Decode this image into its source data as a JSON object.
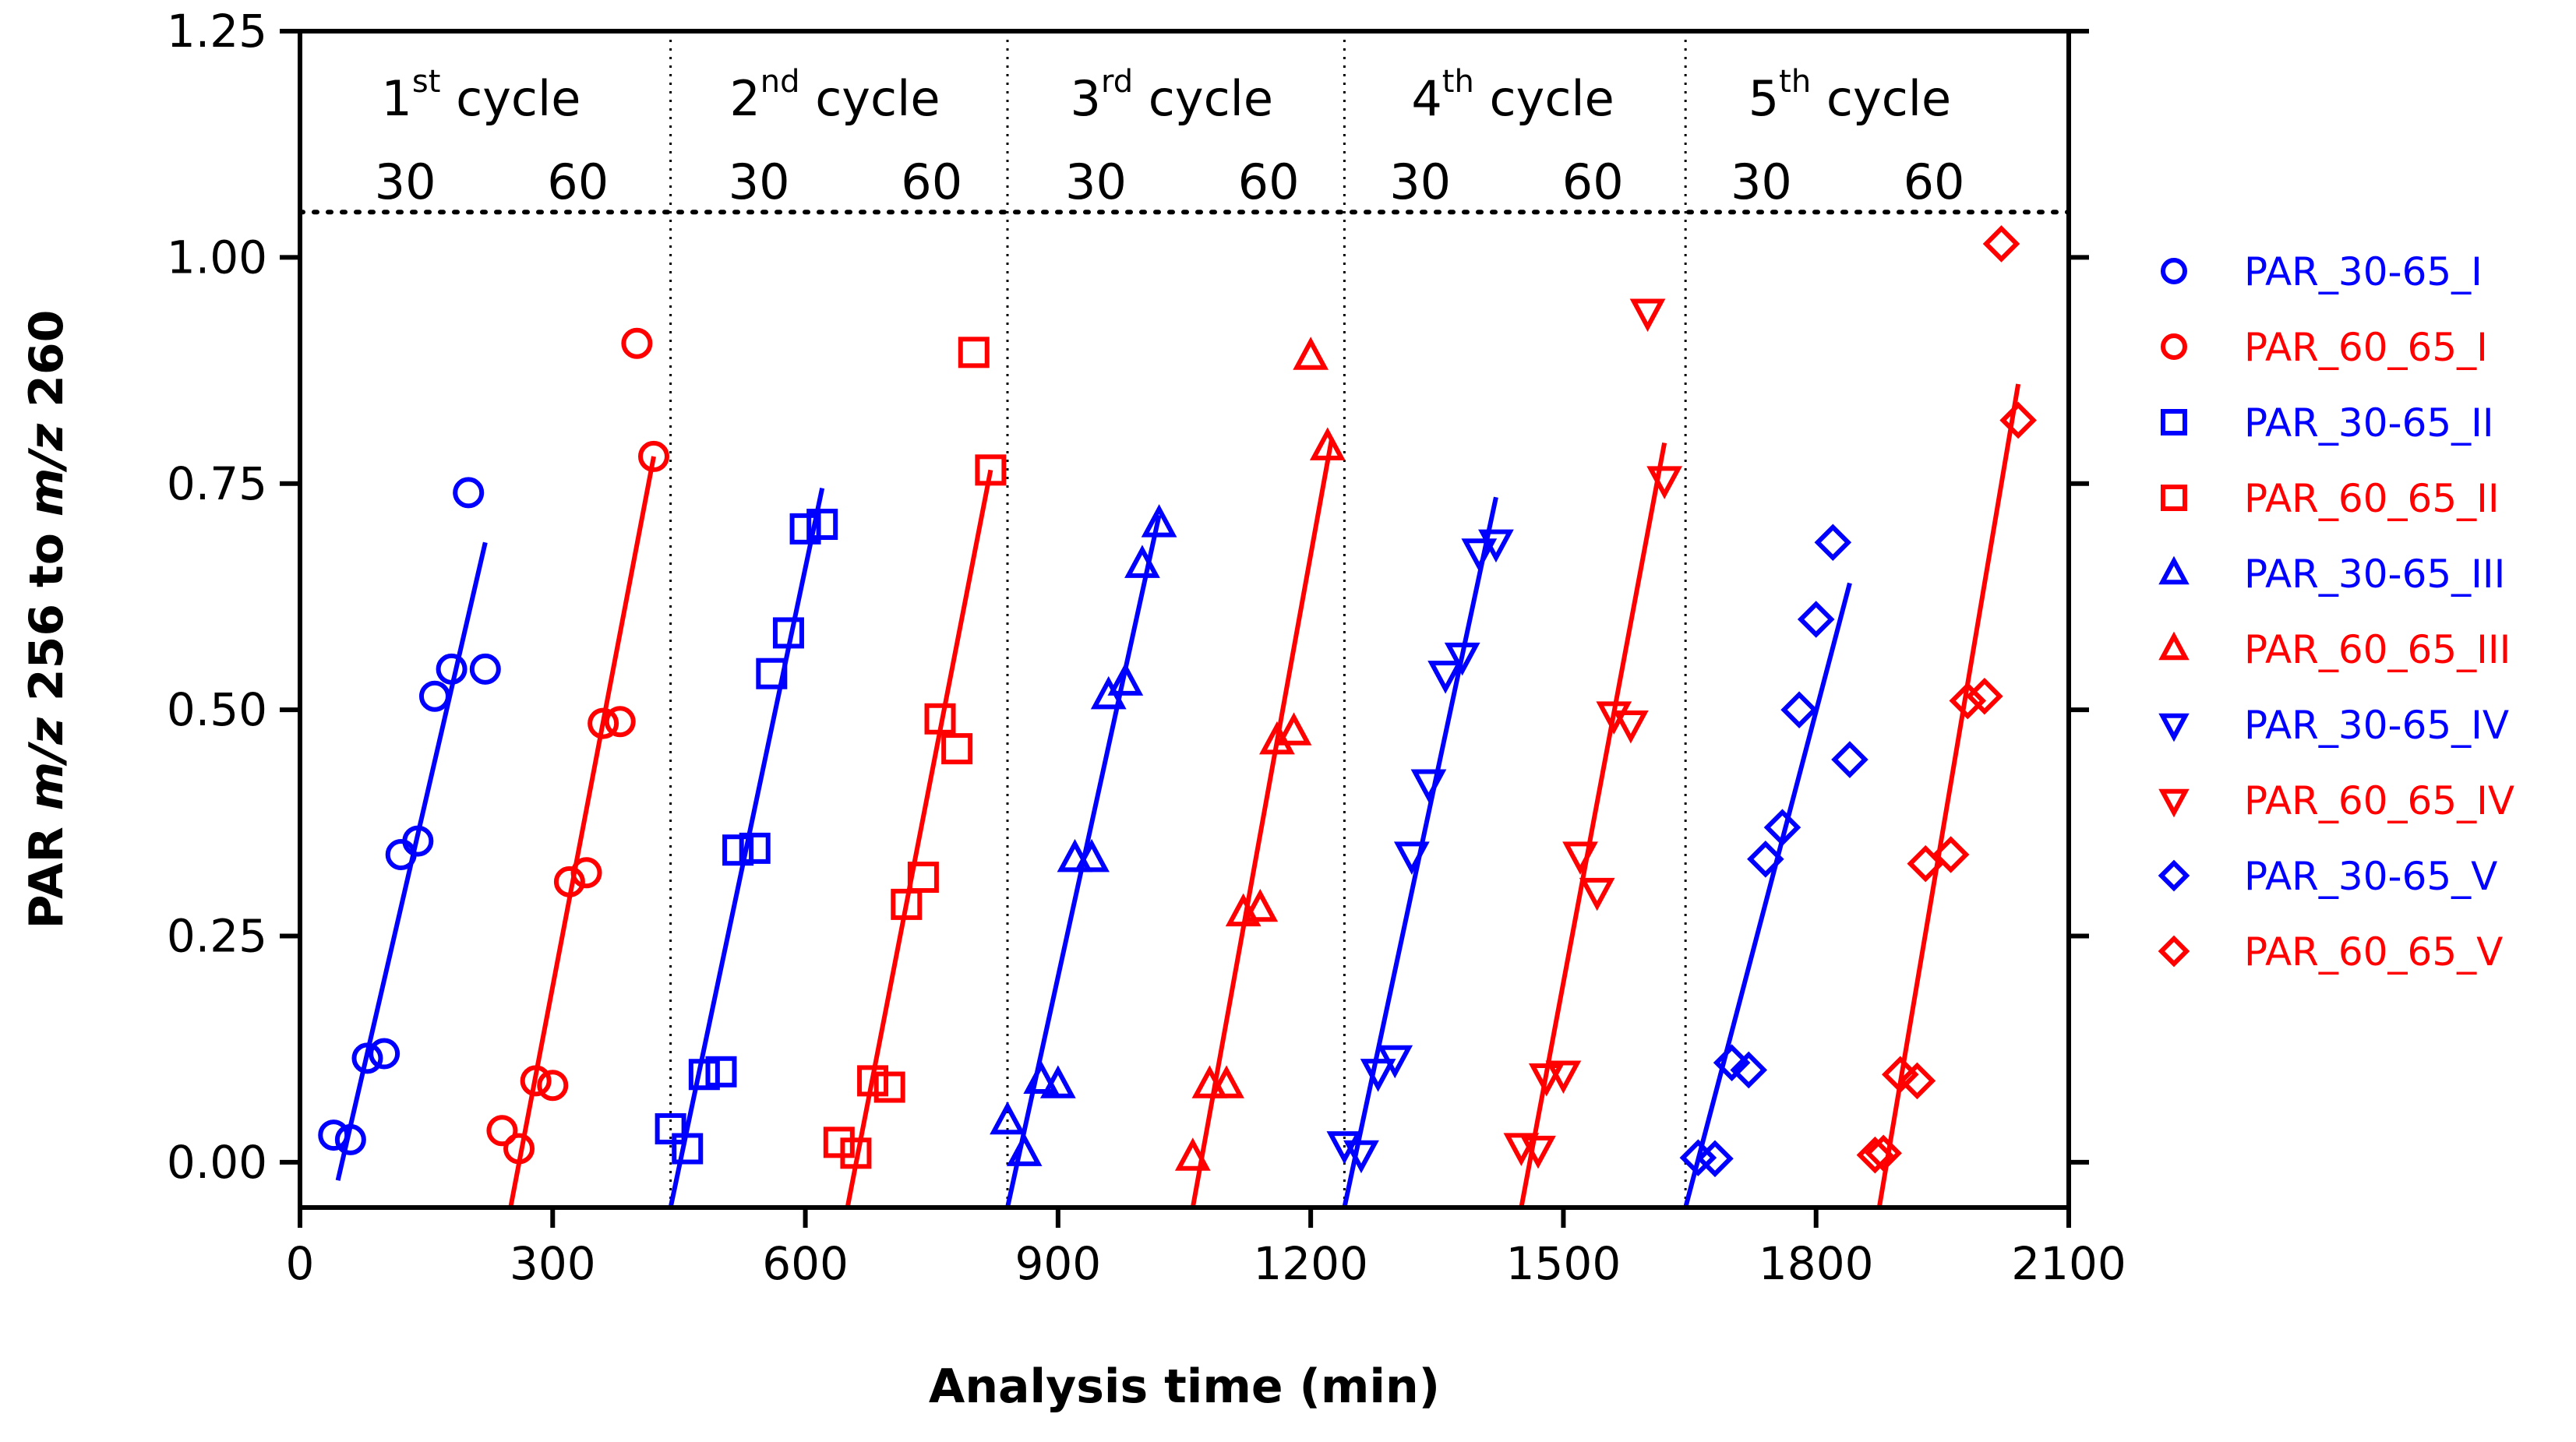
{
  "chart_data": {
    "type": "scatter",
    "xlabel": "Analysis time (min)",
    "ylabel": {
      "pre": "PAR ",
      "mz1": "m/z",
      "mid": " 256 to ",
      "mz2": "m/z",
      "post": " 260"
    },
    "xlim": [
      0,
      2100
    ],
    "ylim": [
      -0.05,
      1.25
    ],
    "x_ticks": [
      "0",
      "300",
      "600",
      "900",
      "1200",
      "1500",
      "1800",
      "2100"
    ],
    "x_tick_values": [
      0,
      300,
      600,
      900,
      1200,
      1500,
      1800,
      2100
    ],
    "y_ticks": [
      "0.00",
      "0.25",
      "0.50",
      "0.75",
      "1.00",
      "1.25"
    ],
    "y_tick_values": [
      0,
      0.25,
      0.5,
      0.75,
      1.0,
      1.25
    ],
    "cycle_divider_y": 1.05,
    "cycle_boundaries": [
      440,
      840,
      1240,
      1645
    ],
    "cycles": [
      {
        "num": "1",
        "sup": "st",
        "word": "cycle",
        "center": 215,
        "sub": [
          "30",
          "60"
        ],
        "sub_x": [
          125,
          330
        ]
      },
      {
        "num": "2",
        "sup": "nd",
        "word": "cycle",
        "center": 635,
        "sub": [
          "30",
          "60"
        ],
        "sub_x": [
          545,
          750
        ]
      },
      {
        "num": "3",
        "sup": "rd",
        "word": "cycle",
        "center": 1035,
        "sub": [
          "30",
          "60"
        ],
        "sub_x": [
          945,
          1150
        ]
      },
      {
        "num": "4",
        "sup": "th",
        "word": "cycle",
        "center": 1440,
        "sub": [
          "30",
          "60"
        ],
        "sub_x": [
          1330,
          1535
        ]
      },
      {
        "num": "5",
        "sup": "th",
        "word": "cycle",
        "center": 1840,
        "sub": [
          "30",
          "60"
        ],
        "sub_x": [
          1735,
          1940
        ]
      }
    ],
    "colors": {
      "blue": "#0000ff",
      "red": "#ff0000"
    },
    "series": [
      {
        "name": "PAR_30-65_I",
        "color": "#0000ff",
        "marker": "circle",
        "x": [
          40,
          60,
          80,
          100,
          120,
          140,
          160,
          180,
          200,
          220
        ],
        "y": [
          0.03,
          0.025,
          0.115,
          0.12,
          0.34,
          0.355,
          0.515,
          0.545,
          0.74,
          0.545
        ],
        "fit": [
          [
            45,
            -0.02
          ],
          [
            220,
            0.685
          ]
        ]
      },
      {
        "name": "PAR_60_65_I",
        "color": "#ff0000",
        "marker": "circle",
        "x": [
          240,
          260,
          280,
          300,
          320,
          340,
          360,
          380,
          400,
          420
        ],
        "y": [
          0.035,
          0.015,
          0.09,
          0.085,
          0.31,
          0.32,
          0.485,
          0.487,
          0.905,
          0.78
        ],
        "fit": [
          [
            250,
            -0.05
          ],
          [
            420,
            0.78
          ]
        ]
      },
      {
        "name": "PAR_30-65_II",
        "color": "#0000ff",
        "marker": "square",
        "x": [
          440,
          460,
          480,
          500,
          520,
          540,
          560,
          580,
          600,
          620
        ],
        "y": [
          0.037,
          0.015,
          0.097,
          0.1,
          0.345,
          0.347,
          0.54,
          0.585,
          0.7,
          0.705
        ],
        "fit": [
          [
            440,
            -0.05
          ],
          [
            620,
            0.745
          ]
        ]
      },
      {
        "name": "PAR_60_65_II",
        "color": "#ff0000",
        "marker": "square",
        "x": [
          640,
          660,
          680,
          700,
          720,
          740,
          760,
          780,
          800,
          820
        ],
        "y": [
          0.022,
          0.01,
          0.09,
          0.083,
          0.285,
          0.315,
          0.49,
          0.457,
          0.895,
          0.765
        ],
        "fit": [
          [
            650,
            -0.05
          ],
          [
            820,
            0.765
          ]
        ]
      },
      {
        "name": "PAR_30-65_III",
        "color": "#0000ff",
        "marker": "triangle-up",
        "x": [
          840,
          860,
          880,
          900,
          920,
          940,
          960,
          980,
          1000,
          1020
        ],
        "y": [
          0.045,
          0.01,
          0.09,
          0.085,
          0.335,
          0.335,
          0.515,
          0.53,
          0.66,
          0.705
        ],
        "fit": [
          [
            840,
            -0.05
          ],
          [
            1020,
            0.715
          ]
        ]
      },
      {
        "name": "PAR_60_65_III",
        "color": "#ff0000",
        "marker": "triangle-up",
        "x": [
          1060,
          1080,
          1100,
          1120,
          1140,
          1160,
          1180,
          1200,
          1220
        ],
        "y": [
          0.005,
          0.085,
          0.085,
          0.275,
          0.28,
          0.465,
          0.475,
          0.89,
          0.79
        ],
        "fit": [
          [
            1060,
            -0.05
          ],
          [
            1225,
            0.8
          ]
        ]
      },
      {
        "name": "PAR_30-65_IV",
        "color": "#0000ff",
        "marker": "triangle-down",
        "x": [
          1240,
          1260,
          1280,
          1300,
          1320,
          1340,
          1360,
          1380,
          1400,
          1420
        ],
        "y": [
          0.02,
          0.01,
          0.1,
          0.115,
          0.34,
          0.42,
          0.54,
          0.56,
          0.675,
          0.685
        ],
        "fit": [
          [
            1240,
            -0.05
          ],
          [
            1420,
            0.735
          ]
        ]
      },
      {
        "name": "PAR_60_65_IV",
        "color": "#ff0000",
        "marker": "triangle-down",
        "x": [
          1450,
          1470,
          1480,
          1500,
          1520,
          1540,
          1560,
          1580,
          1600,
          1620
        ],
        "y": [
          0.018,
          0.015,
          0.095,
          0.098,
          0.34,
          0.3,
          0.495,
          0.485,
          0.94,
          0.755
        ],
        "fit": [
          [
            1450,
            -0.05
          ],
          [
            1620,
            0.795
          ]
        ]
      },
      {
        "name": "PAR_30-65_V",
        "color": "#0000ff",
        "marker": "diamond",
        "x": [
          1660,
          1680,
          1700,
          1720,
          1740,
          1760,
          1780,
          1800,
          1820,
          1840
        ],
        "y": [
          0.005,
          0.004,
          0.11,
          0.102,
          0.335,
          0.37,
          0.5,
          0.6,
          0.685,
          0.445
        ],
        "fit": [
          [
            1645,
            -0.05
          ],
          [
            1840,
            0.64
          ]
        ]
      },
      {
        "name": "PAR_60_65_V",
        "color": "#ff0000",
        "marker": "diamond",
        "x": [
          1870,
          1880,
          1900,
          1920,
          1930,
          1960,
          1980,
          2000,
          2020,
          2040
        ],
        "y": [
          0.008,
          0.01,
          0.097,
          0.09,
          0.33,
          0.34,
          0.51,
          0.515,
          1.015,
          0.82
        ],
        "fit": [
          [
            1875,
            -0.05
          ],
          [
            2040,
            0.86
          ]
        ]
      }
    ]
  }
}
